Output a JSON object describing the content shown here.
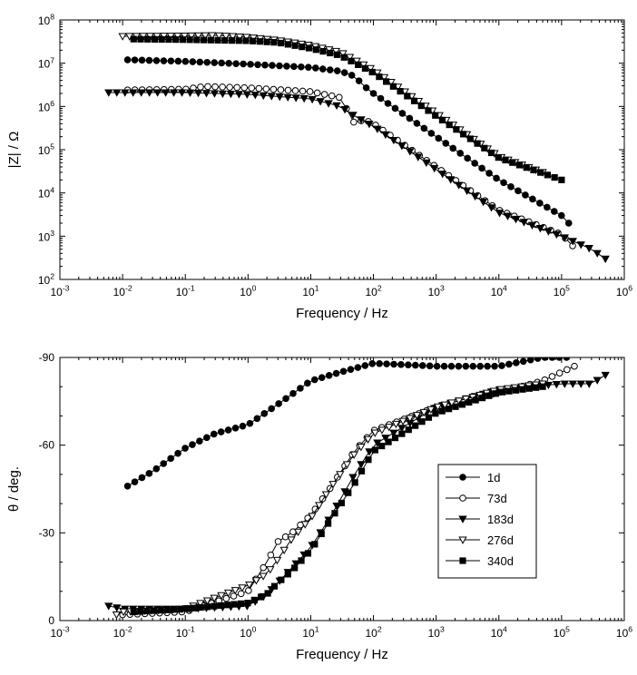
{
  "chart_data": [
    {
      "type": "line",
      "panel": "top",
      "xlabel": "Frequency / Hz",
      "ylabel": "|Z| / Ω",
      "xscale": "log",
      "yscale": "log",
      "xlim": [
        0.001,
        1000000
      ],
      "ylim": [
        100,
        100000000
      ],
      "x_ticks": [
        0.001,
        0.01,
        0.1,
        1,
        10,
        100,
        1000,
        10000,
        100000,
        1000000
      ],
      "x_tick_labels": [
        {
          "base": "10",
          "exp": "-3"
        },
        {
          "base": "10",
          "exp": "-2"
        },
        {
          "base": "10",
          "exp": "-1"
        },
        {
          "base": "10",
          "exp": "0"
        },
        {
          "base": "10",
          "exp": "1"
        },
        {
          "base": "10",
          "exp": "2"
        },
        {
          "base": "10",
          "exp": "3"
        },
        {
          "base": "10",
          "exp": "4"
        },
        {
          "base": "10",
          "exp": "5"
        },
        {
          "base": "10",
          "exp": "6"
        }
      ],
      "y_ticks": [
        100,
        1000,
        10000,
        100000,
        1000000,
        10000000,
        100000000
      ],
      "y_tick_labels": [
        {
          "base": "10",
          "exp": "2"
        },
        {
          "base": "10",
          "exp": "3"
        },
        {
          "base": "10",
          "exp": "4"
        },
        {
          "base": "10",
          "exp": "5"
        },
        {
          "base": "10",
          "exp": "6"
        },
        {
          "base": "10",
          "exp": "7"
        },
        {
          "base": "10",
          "exp": "8"
        }
      ],
      "grid": false,
      "series": [
        {
          "name": "1d",
          "marker": "circle-filled",
          "x": [
            0.012,
            0.1,
            1,
            10,
            30,
            50,
            70,
            100,
            1000,
            10000,
            100000,
            130000
          ],
          "y": [
            12000000,
            11000000,
            9500000,
            8000000,
            6500000,
            5000000,
            3000000,
            2000000,
            200000,
            20000,
            3000,
            2000
          ]
        },
        {
          "name": "73d",
          "marker": "circle-open",
          "x": [
            0.012,
            0.1,
            0.2,
            1,
            10,
            30,
            50,
            70,
            100,
            1000,
            10000,
            100000,
            150000
          ],
          "y": [
            2400000,
            2500000,
            2900000,
            2700000,
            2200000,
            1600000,
            400000,
            500000,
            400000,
            40000,
            4000,
            1100,
            600
          ]
        },
        {
          "name": "183d",
          "marker": "triangle-down-filled",
          "x": [
            0.006,
            0.1,
            1,
            10,
            30,
            50,
            100,
            1000,
            10000,
            100000,
            300000,
            500000
          ],
          "y": [
            2100000,
            2100000,
            1900000,
            1500000,
            1000000,
            600000,
            350000,
            35000,
            3500,
            1000,
            500,
            300
          ]
        },
        {
          "name": "276d",
          "marker": "triangle-down-open",
          "x": [
            0.01,
            0.1,
            0.3,
            1,
            3,
            10,
            30,
            100,
            1000,
            10000,
            50000
          ],
          "y": [
            42000000,
            43000000,
            44000000,
            40000000,
            34000000,
            26000000,
            18000000,
            7000000,
            700000,
            70000,
            30000
          ]
        },
        {
          "name": "340d",
          "marker": "square-filled",
          "x": [
            0.015,
            0.1,
            1,
            3,
            10,
            30,
            100,
            1000,
            10000,
            100000
          ],
          "y": [
            36000000,
            35000000,
            33000000,
            30000000,
            22000000,
            15000000,
            6000000,
            600000,
            65000,
            20000
          ]
        }
      ]
    },
    {
      "type": "line",
      "panel": "bottom",
      "xlabel": "Frequency / Hz",
      "ylabel": "θ / deg.",
      "xscale": "log",
      "xlim": [
        0.001,
        1000000
      ],
      "ylim": [
        0,
        -90
      ],
      "x_ticks": [
        0.001,
        0.01,
        0.1,
        1,
        10,
        100,
        1000,
        10000,
        100000,
        1000000
      ],
      "x_tick_labels": [
        {
          "base": "10",
          "exp": "-3"
        },
        {
          "base": "10",
          "exp": "-2"
        },
        {
          "base": "10",
          "exp": "-1"
        },
        {
          "base": "10",
          "exp": "0"
        },
        {
          "base": "10",
          "exp": "1"
        },
        {
          "base": "10",
          "exp": "2"
        },
        {
          "base": "10",
          "exp": "3"
        },
        {
          "base": "10",
          "exp": "4"
        },
        {
          "base": "10",
          "exp": "5"
        },
        {
          "base": "10",
          "exp": "6"
        }
      ],
      "y_ticks": [
        0,
        -30,
        -60,
        -90
      ],
      "y_tick_labels": [
        "0",
        "-30",
        "-60",
        "-90"
      ],
      "grid": false,
      "legend": "right",
      "series": [
        {
          "name": "1d",
          "marker": "circle-filled",
          "x": [
            0.012,
            0.03,
            0.1,
            0.3,
            1,
            3,
            10,
            30,
            100,
            1000,
            10000,
            50000,
            120000
          ],
          "y": [
            -46,
            -51,
            -59,
            -64,
            -67,
            -74,
            -82,
            -85,
            -88,
            -87,
            -87,
            -90,
            -90
          ]
        },
        {
          "name": "73d",
          "marker": "circle-open",
          "x": [
            0.01,
            0.1,
            1,
            2,
            3,
            5,
            10,
            20,
            50,
            100,
            1000,
            10000,
            50000,
            100000,
            160000
          ],
          "y": [
            -2,
            -3,
            -10,
            -20,
            -27,
            -30,
            -36,
            -45,
            -58,
            -65,
            -73,
            -78,
            -82,
            -85,
            -87
          ]
        },
        {
          "name": "183d",
          "marker": "triangle-down-filled",
          "x": [
            0.006,
            0.01,
            0.1,
            1,
            2,
            3,
            5,
            10,
            20,
            50,
            100,
            1000,
            10000,
            100000,
            300000,
            500000
          ],
          "y": [
            -5,
            -4,
            -4,
            -5,
            -9,
            -13,
            -18,
            -25,
            -35,
            -50,
            -60,
            -73,
            -79,
            -81,
            -81,
            -84
          ]
        },
        {
          "name": "276d",
          "marker": "triangle-down-open",
          "x": [
            0.008,
            0.01,
            0.1,
            1,
            2,
            3,
            5,
            10,
            20,
            50,
            100,
            1000,
            10000,
            50000
          ],
          "y": [
            -2,
            -3,
            -4,
            -12,
            -16,
            -21,
            -28,
            -35,
            -45,
            -57,
            -64,
            -73,
            -79,
            -81
          ]
        },
        {
          "name": "340d",
          "marker": "square-filled",
          "x": [
            0.015,
            0.1,
            1,
            2,
            3,
            5,
            10,
            20,
            50,
            100,
            1000,
            10000,
            50000
          ],
          "y": [
            -3,
            -4,
            -6,
            -9,
            -13,
            -17,
            -24,
            -34,
            -47,
            -58,
            -71,
            -78,
            -80
          ]
        }
      ]
    }
  ]
}
